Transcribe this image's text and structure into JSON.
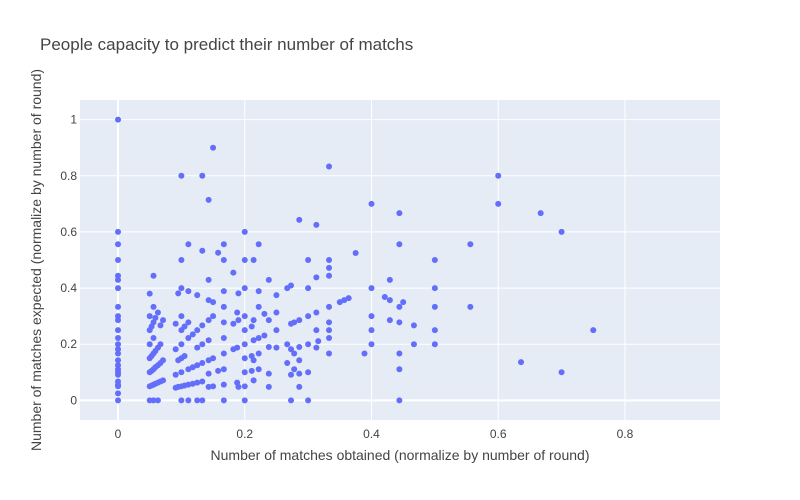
{
  "chart_data": {
    "type": "scatter",
    "title": "People capacity to predict their number of matchs",
    "xlabel": "Number of matches obtained (normalize by number of round)",
    "ylabel": "Number of matches expected (normalize by number of round)",
    "xlim": [
      -0.06,
      0.95
    ],
    "ylim": [
      -0.07,
      1.07
    ],
    "xticks": [
      0,
      0.2,
      0.4,
      0.6,
      0.8
    ],
    "xtick_labels": [
      "0",
      "0.2",
      "0.4",
      "0.6",
      "0.8"
    ],
    "yticks": [
      0,
      0.2,
      0.4,
      0.6,
      0.8,
      1
    ],
    "ytick_labels": [
      "0",
      "0.2",
      "0.4",
      "0.6",
      "0.8",
      "1"
    ],
    "grid": true,
    "colors": {
      "plot_bg": "#e5ecf6",
      "grid": "#ffffff",
      "marker": "#636efa"
    },
    "points": [
      [
        0,
        1
      ],
      [
        0,
        0.6
      ],
      [
        0,
        0.556
      ],
      [
        0,
        0.5
      ],
      [
        0,
        0.444
      ],
      [
        0,
        0.429
      ],
      [
        0,
        0.4
      ],
      [
        0,
        0.333
      ],
      [
        0,
        0.3
      ],
      [
        0,
        0.286
      ],
      [
        0,
        0.25
      ],
      [
        0,
        0.222
      ],
      [
        0,
        0.2
      ],
      [
        0,
        0.182
      ],
      [
        0,
        0.167
      ],
      [
        0,
        0.143
      ],
      [
        0,
        0.125
      ],
      [
        0,
        0.111
      ],
      [
        0,
        0.1
      ],
      [
        0,
        0.091
      ],
      [
        0,
        0.067
      ],
      [
        0,
        0.056
      ],
      [
        0,
        0.05
      ],
      [
        0,
        0.025
      ],
      [
        0,
        0
      ],
      [
        0.05,
        0
      ],
      [
        0.05,
        0.05
      ],
      [
        0.05,
        0.1
      ],
      [
        0.05,
        0.15
      ],
      [
        0.05,
        0.2
      ],
      [
        0.05,
        0.25
      ],
      [
        0.05,
        0.3
      ],
      [
        0.05,
        0.38
      ],
      [
        0.053,
        0.053
      ],
      [
        0.053,
        0.105
      ],
      [
        0.053,
        0.158
      ],
      [
        0.053,
        0.263
      ],
      [
        0.056,
        0
      ],
      [
        0.056,
        0.056
      ],
      [
        0.056,
        0.111
      ],
      [
        0.056,
        0.167
      ],
      [
        0.056,
        0.278
      ],
      [
        0.056,
        0.444
      ],
      [
        0.056,
        0.333
      ],
      [
        0.056,
        0.222
      ],
      [
        0.059,
        0.059
      ],
      [
        0.059,
        0.118
      ],
      [
        0.059,
        0.176
      ],
      [
        0.059,
        0.294
      ],
      [
        0.063,
        0
      ],
      [
        0.063,
        0.063
      ],
      [
        0.063,
        0.125
      ],
      [
        0.063,
        0.188
      ],
      [
        0.063,
        0.313
      ],
      [
        0.067,
        0.067
      ],
      [
        0.067,
        0.133
      ],
      [
        0.067,
        0.2
      ],
      [
        0.067,
        0.267
      ],
      [
        0.071,
        0.071
      ],
      [
        0.071,
        0.143
      ],
      [
        0.071,
        0.286
      ],
      [
        0.091,
        0.091
      ],
      [
        0.091,
        0.182
      ],
      [
        0.091,
        0.273
      ],
      [
        0.091,
        0.045
      ],
      [
        0.095,
        0.048
      ],
      [
        0.095,
        0.143
      ],
      [
        0.095,
        0.381
      ],
      [
        0.1,
        0
      ],
      [
        0.1,
        0.05
      ],
      [
        0.1,
        0.1
      ],
      [
        0.1,
        0.2
      ],
      [
        0.1,
        0.3
      ],
      [
        0.1,
        0.4
      ],
      [
        0.1,
        0.5
      ],
      [
        0.1,
        0.8
      ],
      [
        0.1,
        0.15
      ],
      [
        0.1,
        0.25
      ],
      [
        0.105,
        0.053
      ],
      [
        0.105,
        0.158
      ],
      [
        0.105,
        0.263
      ],
      [
        0.111,
        0
      ],
      [
        0.111,
        0.056
      ],
      [
        0.111,
        0.111
      ],
      [
        0.111,
        0.222
      ],
      [
        0.111,
        0.278
      ],
      [
        0.111,
        0.389
      ],
      [
        0.111,
        0.556
      ],
      [
        0.118,
        0.059
      ],
      [
        0.118,
        0.118
      ],
      [
        0.118,
        0.235
      ],
      [
        0.125,
        0
      ],
      [
        0.125,
        0.063
      ],
      [
        0.125,
        0.125
      ],
      [
        0.125,
        0.188
      ],
      [
        0.125,
        0.375
      ],
      [
        0.125,
        0.25
      ],
      [
        0.133,
        0
      ],
      [
        0.133,
        0.067
      ],
      [
        0.133,
        0.133
      ],
      [
        0.133,
        0.2
      ],
      [
        0.133,
        0.267
      ],
      [
        0.133,
        0.533
      ],
      [
        0.133,
        0.8
      ],
      [
        0.143,
        0.048
      ],
      [
        0.143,
        0.095
      ],
      [
        0.143,
        0.143
      ],
      [
        0.143,
        0.286
      ],
      [
        0.143,
        0.357
      ],
      [
        0.143,
        0.429
      ],
      [
        0.143,
        0.714
      ],
      [
        0.143,
        0.214
      ],
      [
        0.15,
        0.05
      ],
      [
        0.15,
        0.15
      ],
      [
        0.15,
        0.3
      ],
      [
        0.15,
        0.35
      ],
      [
        0.15,
        0.9
      ],
      [
        0.158,
        0.105
      ],
      [
        0.158,
        0.526
      ],
      [
        0.167,
        0
      ],
      [
        0.167,
        0.056
      ],
      [
        0.167,
        0.111
      ],
      [
        0.167,
        0.167
      ],
      [
        0.167,
        0.222
      ],
      [
        0.167,
        0.278
      ],
      [
        0.167,
        0.333
      ],
      [
        0.167,
        0.389
      ],
      [
        0.167,
        0.5
      ],
      [
        0.167,
        0.556
      ],
      [
        0.182,
        0.182
      ],
      [
        0.182,
        0.455
      ],
      [
        0.182,
        0.273
      ],
      [
        0.188,
        0.063
      ],
      [
        0.188,
        0.188
      ],
      [
        0.188,
        0.313
      ],
      [
        0.19,
        0.048
      ],
      [
        0.19,
        0.286
      ],
      [
        0.19,
        0.381
      ],
      [
        0.2,
        0
      ],
      [
        0.2,
        0.05
      ],
      [
        0.2,
        0.1
      ],
      [
        0.2,
        0.15
      ],
      [
        0.2,
        0.2
      ],
      [
        0.2,
        0.25
      ],
      [
        0.2,
        0.3
      ],
      [
        0.2,
        0.4
      ],
      [
        0.2,
        0.5
      ],
      [
        0.2,
        0.6
      ],
      [
        0.211,
        0.105
      ],
      [
        0.211,
        0.158
      ],
      [
        0.211,
        0.263
      ],
      [
        0.214,
        0.071
      ],
      [
        0.214,
        0.143
      ],
      [
        0.214,
        0.214
      ],
      [
        0.214,
        0.286
      ],
      [
        0.214,
        0.5
      ],
      [
        0.222,
        0.111
      ],
      [
        0.222,
        0.167
      ],
      [
        0.222,
        0.222
      ],
      [
        0.222,
        0.333
      ],
      [
        0.222,
        0.389
      ],
      [
        0.222,
        0.556
      ],
      [
        0.231,
        0.231
      ],
      [
        0.231,
        0.308
      ],
      [
        0.238,
        0.048
      ],
      [
        0.238,
        0.095
      ],
      [
        0.238,
        0.19
      ],
      [
        0.238,
        0.286
      ],
      [
        0.238,
        0.429
      ],
      [
        0.25,
        0.188
      ],
      [
        0.25,
        0.25
      ],
      [
        0.25,
        0.313
      ],
      [
        0.25,
        0.375
      ],
      [
        0.267,
        0.133
      ],
      [
        0.267,
        0.2
      ],
      [
        0.267,
        0.4
      ],
      [
        0.273,
        0
      ],
      [
        0.273,
        0.091
      ],
      [
        0.273,
        0.182
      ],
      [
        0.273,
        0.273
      ],
      [
        0.273,
        0.409
      ],
      [
        0.278,
        0.111
      ],
      [
        0.278,
        0.167
      ],
      [
        0.278,
        0.278
      ],
      [
        0.286,
        0.048
      ],
      [
        0.286,
        0.095
      ],
      [
        0.286,
        0.143
      ],
      [
        0.286,
        0.19
      ],
      [
        0.286,
        0.286
      ],
      [
        0.286,
        0.643
      ],
      [
        0.3,
        0
      ],
      [
        0.3,
        0.1
      ],
      [
        0.3,
        0.2
      ],
      [
        0.3,
        0.3
      ],
      [
        0.3,
        0.4
      ],
      [
        0.3,
        0.5
      ],
      [
        0.313,
        0.188
      ],
      [
        0.313,
        0.25
      ],
      [
        0.313,
        0.313
      ],
      [
        0.313,
        0.438
      ],
      [
        0.313,
        0.625
      ],
      [
        0.316,
        0.211
      ],
      [
        0.333,
        0.167
      ],
      [
        0.333,
        0.222
      ],
      [
        0.333,
        0.25
      ],
      [
        0.333,
        0.278
      ],
      [
        0.333,
        0.333
      ],
      [
        0.333,
        0.444
      ],
      [
        0.333,
        0.5
      ],
      [
        0.333,
        0.833
      ],
      [
        0.333,
        0.472
      ],
      [
        0.35,
        0.35
      ],
      [
        0.357,
        0.357
      ],
      [
        0.364,
        0.364
      ],
      [
        0.375,
        0.525
      ],
      [
        0.389,
        0.167
      ],
      [
        0.4,
        0.2
      ],
      [
        0.4,
        0.25
      ],
      [
        0.4,
        0.3
      ],
      [
        0.4,
        0.4
      ],
      [
        0.4,
        0.7
      ],
      [
        0.421,
        0.368
      ],
      [
        0.429,
        0.286
      ],
      [
        0.429,
        0.357
      ],
      [
        0.429,
        0.429
      ],
      [
        0.444,
        0
      ],
      [
        0.444,
        0.111
      ],
      [
        0.444,
        0.167
      ],
      [
        0.444,
        0.278
      ],
      [
        0.444,
        0.333
      ],
      [
        0.444,
        0.556
      ],
      [
        0.444,
        0.667
      ],
      [
        0.45,
        0.35
      ],
      [
        0.467,
        0.2
      ],
      [
        0.467,
        0.267
      ],
      [
        0.5,
        0.2
      ],
      [
        0.5,
        0.25
      ],
      [
        0.5,
        0.333
      ],
      [
        0.5,
        0.4
      ],
      [
        0.5,
        0.5
      ],
      [
        0.556,
        0.333
      ],
      [
        0.556,
        0.556
      ],
      [
        0.6,
        0.7
      ],
      [
        0.6,
        0.8
      ],
      [
        0.636,
        0.136
      ],
      [
        0.667,
        0.667
      ],
      [
        0.7,
        0.1
      ],
      [
        0.7,
        0.6
      ],
      [
        0.75,
        0.25
      ]
    ]
  }
}
